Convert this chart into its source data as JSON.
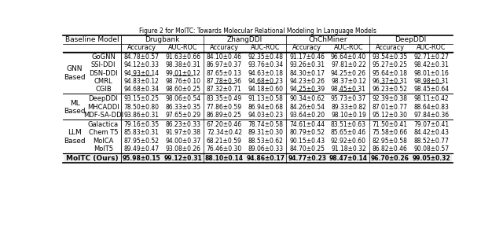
{
  "title": "Figure 2 for MolTC: Towards Molecular Relational Modeling In Language Models",
  "datasets": [
    "Drugbank",
    "ZhangDDI",
    "ChChMiner",
    "DeepDDI"
  ],
  "groups": [
    {
      "name": "GNN\nBased",
      "models": [
        "GoGNN",
        "SSI-DDI",
        "DSN-DDI",
        "CMRL",
        "CGIB"
      ],
      "data": {
        "GoGNN": [
          "84.78±0.57",
          "91.63±0.66",
          "84.10±0.46",
          "92.35±0.48",
          "91.17±0.46",
          "96.64±0.40",
          "93.54±0.35",
          "92.71±0.27"
        ],
        "SSI-DDI": [
          "94.12±0.33",
          "98.38±0.31",
          "86.97±0.37",
          "93.76±0.34",
          "93.26±0.31",
          "97.81±0.22",
          "95.27±0.25",
          "98.42±0.31"
        ],
        "DSN-DDI": [
          "94.93±0.14",
          "99.01±0.12",
          "87.65±0.13",
          "94.63±0.18",
          "84.30±0.17",
          "94.25±0.26",
          "95.64±0.18",
          "98.01±0.16"
        ],
        "CMRL": [
          "94.83±0.12",
          "98.76±0.10",
          "87.78±0.36",
          "94.68±0.23",
          "94.23±0.26",
          "98.37±0.12",
          "96.37±0.31",
          "98.98±0.31"
        ],
        "CGIB": [
          "94.68±0.34",
          "98.60±0.25",
          "87.32±0.71",
          "94.18±0.60",
          "94.25±0.39",
          "98.45±0.31",
          "96.23±0.52",
          "98.45±0.64"
        ]
      },
      "underline": {
        "DSN-DDI": [
          0,
          1
        ],
        "CMRL": [
          2,
          3,
          6,
          7
        ],
        "CGIB": [
          4,
          5
        ]
      }
    },
    {
      "name": "ML\nBased",
      "models": [
        "DeepDDI",
        "MHCADDI",
        "MDF-SA-DDI"
      ],
      "data": {
        "DeepDDI": [
          "93.15±0.25",
          "98.06±0.54",
          "83.35±0.49",
          "91.13±0.58",
          "90.34±0.62",
          "95.73±0.37",
          "92.39±0.38",
          "98.11±0.42"
        ],
        "MHCADDI": [
          "78.50±0.80",
          "86.33±0.35",
          "77.86±0.59",
          "86.94±0.68",
          "84.26±0.54",
          "89.33±0.82",
          "87.01±0.77",
          "88.64±0.83"
        ],
        "MDF-SA-DDI": [
          "93.86±0.31",
          "97.65±0.29",
          "86.89±0.25",
          "94.03±0.23",
          "93.64±0.20",
          "98.10±0.19",
          "95.12±0.30",
          "97.84±0.36"
        ]
      },
      "underline": {}
    },
    {
      "name": "LLM\nBased",
      "models": [
        "Galactica",
        "Chem T5",
        "MolCA",
        "MolT5"
      ],
      "data": {
        "Galactica": [
          "79.16±0.35",
          "86.23±0.33",
          "67.20±0.46",
          "78.74±0.58",
          "74.61±0.44",
          "83.51±0.63",
          "71.50±0.41",
          "79.07±0.41"
        ],
        "Chem T5": [
          "85.83±0.31",
          "91.97±0.38",
          "72.34±0.42",
          "89.31±0.30",
          "80.79±0.52",
          "85.65±0.46",
          "75.58±0.66",
          "84.42±0.43"
        ],
        "MolCA": [
          "87.95±0.52",
          "94.00±0.37",
          "68.21±0.59",
          "88.53±0.62",
          "90.15±0.43",
          "92.92±0.60",
          "82.95±0.58",
          "88.52±0.77"
        ],
        "MolT5": [
          "89.49±0.47",
          "93.08±0.26",
          "76.46±0.30",
          "89.06±0.33",
          "84.70±0.25",
          "91.18±0.32",
          "86.82±0.46",
          "90.08±0.57"
        ]
      },
      "underline": {}
    }
  ],
  "moltc": [
    "95.98±0.15",
    "99.12±0.31",
    "88.10±0.14",
    "94.86±0.17",
    "94.77±0.23",
    "98.47±0.14",
    "96.70±0.26",
    "99.05±0.32"
  ]
}
